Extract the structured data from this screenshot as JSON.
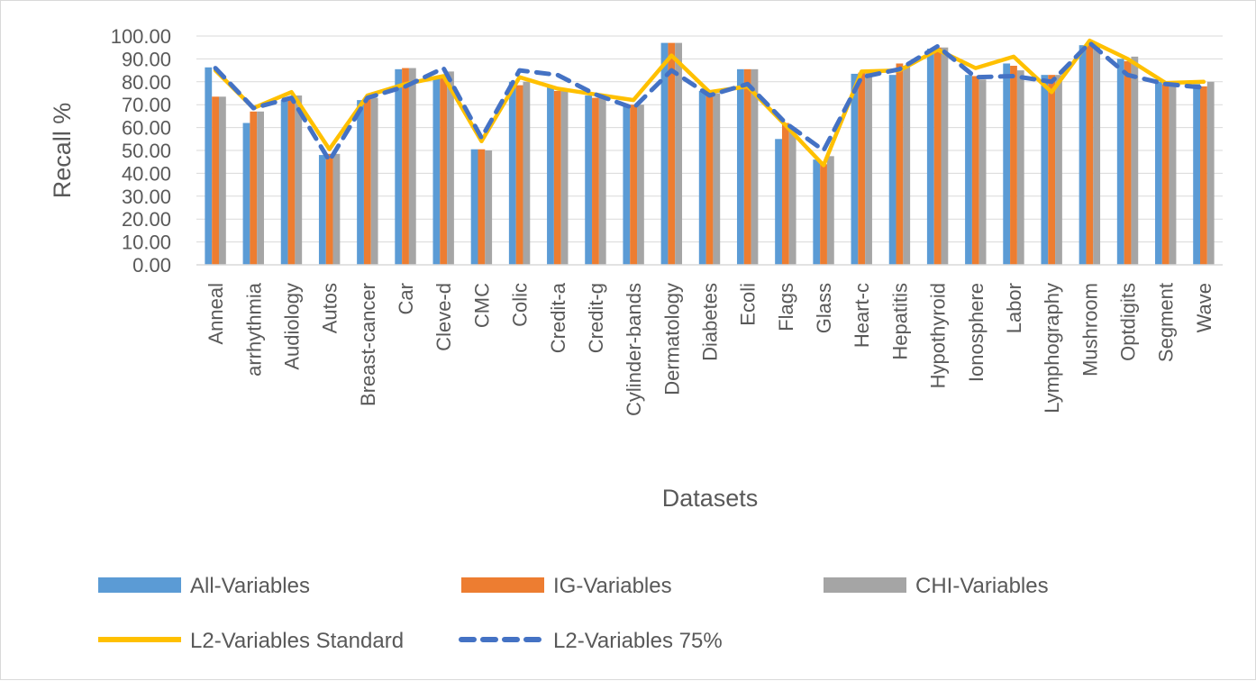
{
  "chart_data": {
    "type": "bar",
    "title": "",
    "xlabel": "Datasets",
    "ylabel": "Recall %",
    "ylim": [
      0,
      100
    ],
    "yticks": [
      "0.00",
      "10.00",
      "20.00",
      "30.00",
      "40.00",
      "50.00",
      "60.00",
      "70.00",
      "80.00",
      "90.00",
      "100.00"
    ],
    "grid": true,
    "legend_position": "bottom",
    "categories": [
      "Anneal",
      "arrhythmia",
      "Audiology",
      "Autos",
      "Breast-cancer",
      "Car",
      "Cleve-d",
      "CMC",
      "Colic",
      "Credit-a",
      "Credit-g",
      "Cylinder-bands",
      "Dermatology",
      "Diabetes",
      "Ecoli",
      "Flags",
      "Glass",
      "Heart-c",
      "Hepatitis",
      "Hypothyroid",
      "Ionosphere",
      "Labor",
      "Lymphography",
      "Mushroom",
      "Optdigits",
      "Segment",
      "Wave"
    ],
    "series": [
      {
        "name": "All-Variables",
        "type": "bar",
        "color": "#5b9bd5",
        "values": [
          86.3,
          62.0,
          72.0,
          48.0,
          72.0,
          85.5,
          82.0,
          50.5,
          80.0,
          78.0,
          74.0,
          70.0,
          97.0,
          76.0,
          85.5,
          55.0,
          46.0,
          83.5,
          83.0,
          94.5,
          83.0,
          88.0,
          83.0,
          96.0,
          90.0,
          80.0,
          79.0
        ]
      },
      {
        "name": "IG-Variables",
        "type": "bar",
        "color": "#ed7d31",
        "values": [
          73.5,
          67.0,
          73.5,
          48.5,
          73.0,
          86.0,
          83.0,
          50.5,
          78.5,
          76.0,
          73.0,
          70.0,
          97.0,
          74.0,
          85.5,
          62.0,
          44.0,
          84.0,
          88.0,
          95.0,
          82.5,
          87.0,
          83.0,
          96.0,
          89.0,
          79.0,
          78.0
        ]
      },
      {
        "name": "CHI-Variables",
        "type": "bar",
        "color": "#a5a5a5",
        "values": [
          73.5,
          67.0,
          74.0,
          48.5,
          73.0,
          86.0,
          84.5,
          50.0,
          80.0,
          77.0,
          73.0,
          70.0,
          97.0,
          75.0,
          85.5,
          60.0,
          47.5,
          84.0,
          87.0,
          95.0,
          81.0,
          85.0,
          83.0,
          96.0,
          91.0,
          80.0,
          80.0
        ]
      },
      {
        "name": "L2-Variables Standard",
        "type": "line",
        "color": "#ffc000",
        "values": [
          85.0,
          68.5,
          75.5,
          50.5,
          74.0,
          79.0,
          82.5,
          54.0,
          82.0,
          77.0,
          74.5,
          72.0,
          91.5,
          75.5,
          78.0,
          61.0,
          43.5,
          84.5,
          85.0,
          94.0,
          86.0,
          91.0,
          75.5,
          98.0,
          90.0,
          79.5,
          80.0
        ]
      },
      {
        "name": "L2-Variables 75%",
        "type": "line",
        "dash": true,
        "color": "#4472c4",
        "values": [
          86.0,
          68.5,
          73.0,
          45.5,
          73.0,
          78.0,
          86.0,
          55.5,
          85.0,
          83.0,
          74.5,
          68.5,
          85.0,
          74.0,
          79.0,
          62.0,
          50.0,
          82.0,
          85.5,
          95.5,
          82.0,
          82.5,
          80.0,
          97.0,
          83.0,
          79.0,
          77.5
        ]
      }
    ]
  }
}
